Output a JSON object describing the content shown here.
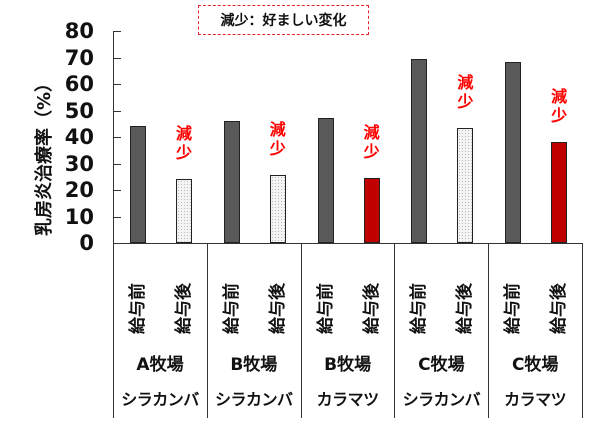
{
  "chart_data": {
    "type": "bar",
    "title": "",
    "ylabel": "乳房炎治療率（%）",
    "xlabel": "",
    "ylim": [
      0,
      80
    ],
    "yticks": [
      0,
      10,
      20,
      30,
      40,
      50,
      60,
      70,
      80
    ],
    "legend_note": "減少：好ましい変化",
    "groups": [
      {
        "farm": "A牧場",
        "tree": "シラカンバ",
        "pre_label": "給与前",
        "post_label": "給与後",
        "pre": 44.2,
        "post": 24.1,
        "post_style": "dotted",
        "annotation": "減少"
      },
      {
        "farm": "B牧場",
        "tree": "シラカンバ",
        "pre_label": "給与前",
        "post_label": "給与後",
        "pre": 45.9,
        "post": 25.7,
        "post_style": "dotted",
        "annotation": "減少"
      },
      {
        "farm": "B牧場",
        "tree": "カラマツ",
        "pre_label": "給与前",
        "post_label": "給与後",
        "pre": 47.1,
        "post": 24.7,
        "post_style": "red",
        "annotation": "減少"
      },
      {
        "farm": "C牧場",
        "tree": "シラカンバ",
        "pre_label": "給与前",
        "post_label": "給与後",
        "pre": 69.3,
        "post": 43.4,
        "post_style": "dotted",
        "annotation": "減少"
      },
      {
        "farm": "C牧場",
        "tree": "カラマツ",
        "pre_label": "給与前",
        "post_label": "給与後",
        "pre": 68.4,
        "post": 38.0,
        "post_style": "red",
        "annotation": "減少"
      }
    ],
    "categories": [
      "A牧場 シラカンバ",
      "B牧場 シラカンバ",
      "B牧場 カラマツ",
      "C牧場 シラカンバ",
      "C牧場 カラマツ"
    ],
    "series": [
      {
        "name": "給与前",
        "values": [
          44.2,
          45.9,
          47.1,
          69.3,
          68.4
        ],
        "color": "#595959"
      },
      {
        "name": "給与後",
        "values": [
          24.1,
          25.7,
          24.7,
          43.4,
          38.0
        ],
        "colors": [
          "#f4f4f4",
          "#f4f4f4",
          "#c00000",
          "#f4f4f4",
          "#c00000"
        ]
      }
    ],
    "colors": {
      "pre": "#595959",
      "post_dotted": "#f4f4f4",
      "post_red": "#c00000",
      "annotation": "#ff0000",
      "legend_border": "#e8222a"
    }
  }
}
